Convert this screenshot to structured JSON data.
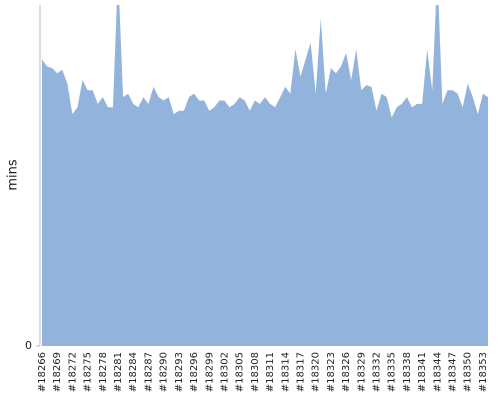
{
  "chart_data": {
    "type": "area",
    "y_label": "mins",
    "color": "#92b4dc",
    "categories": [
      "#18266",
      null,
      null,
      "#18269",
      null,
      null,
      "#18272",
      null,
      null,
      "#18275",
      null,
      null,
      "#18278",
      null,
      null,
      "#18281",
      null,
      null,
      "#18284",
      null,
      null,
      "#18287",
      null,
      null,
      "#18290",
      null,
      null,
      "#18293",
      null,
      null,
      "#18296",
      null,
      null,
      "#18299",
      null,
      null,
      "#18302",
      null,
      null,
      "#18305",
      null,
      null,
      "#18308",
      null,
      null,
      "#18311",
      null,
      null,
      "#18314",
      null,
      null,
      "#18317",
      null,
      null,
      "#18320",
      null,
      null,
      "#18323",
      null,
      null,
      "#18326",
      null,
      null,
      "#18329",
      null,
      null,
      "#18332",
      null,
      null,
      "#18335",
      null,
      null,
      "#18338",
      null,
      null,
      "#18341",
      null,
      null,
      "#18344",
      null,
      null,
      "#18347",
      null,
      null,
      "#18350",
      null,
      null,
      "#18353",
      null
    ],
    "values": [
      84,
      82,
      81.5,
      80,
      81,
      77,
      68,
      70,
      78,
      75,
      75,
      71,
      73,
      70,
      70,
      110,
      73,
      74,
      71,
      70,
      73,
      71,
      76,
      73,
      72,
      73,
      68,
      69,
      69,
      73,
      74,
      72,
      72,
      69,
      70,
      72,
      72,
      70,
      71,
      73,
      72,
      69,
      72,
      71,
      73,
      71,
      70,
      73,
      76,
      74,
      87,
      79,
      84,
      89,
      74,
      96,
      74,
      81.5,
      80,
      82,
      86,
      78,
      87,
      75,
      76.5,
      76,
      69,
      74,
      73,
      67,
      70,
      71,
      73,
      70,
      71,
      71,
      87,
      75,
      110,
      71,
      75,
      75,
      74,
      70,
      77,
      73,
      68,
      74,
      73
    ],
    "ylim": [
      0,
      100
    ],
    "yticks": [
      0
    ]
  }
}
